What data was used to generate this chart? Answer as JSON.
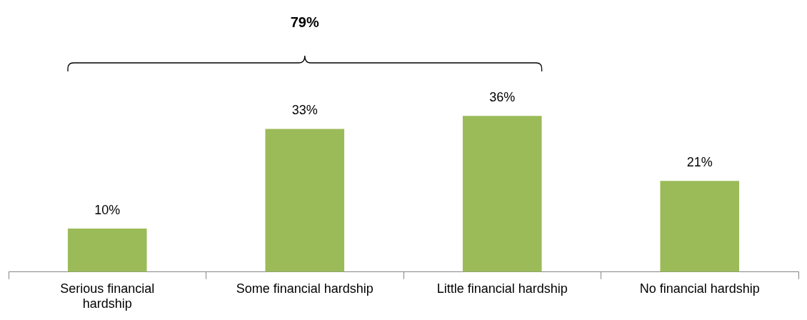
{
  "chart_data": {
    "type": "bar",
    "categories": [
      "Serious financial hardship",
      "Some financial hardship",
      "Little financial hardship",
      "No financial hardship"
    ],
    "values": [
      10,
      33,
      36,
      21
    ],
    "color": "#9bbb59",
    "value_labels": [
      "10%",
      "33%",
      "36%",
      "21%"
    ],
    "annotations": [
      "79%"
    ],
    "grid": false,
    "legend": false
  }
}
